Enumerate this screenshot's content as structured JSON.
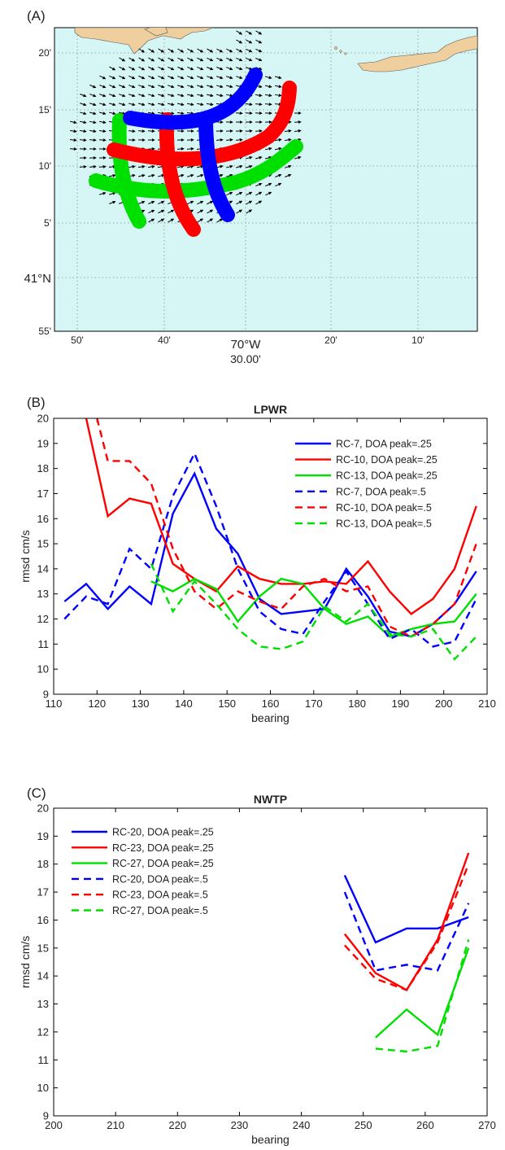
{
  "panel_a": {
    "label": "(A)",
    "lat_labels": [
      "20'",
      "15'",
      "10'",
      "5'",
      "41°N",
      "55'"
    ],
    "lon_labels": [
      "50'",
      "40'",
      "70°W",
      "20'",
      "10'"
    ],
    "lon_sublabel": "30.00'",
    "colors": {
      "ocean": "#d6f6f6",
      "land": "#f0cf9e",
      "blue": "#0000ff",
      "red": "#ff0000",
      "green": "#00e000"
    }
  },
  "chart_data": [
    {
      "type": "line",
      "panel": "(B)",
      "title": "LPWR",
      "xlabel": "bearing",
      "ylabel": "rmsd cm/s",
      "xlim": [
        110,
        210
      ],
      "ylim": [
        9,
        20
      ],
      "xticks": [
        110,
        120,
        130,
        140,
        150,
        160,
        170,
        180,
        190,
        200,
        210
      ],
      "yticks": [
        9,
        10,
        11,
        12,
        13,
        14,
        15,
        16,
        17,
        18,
        19,
        20
      ],
      "legend_position": "top-right",
      "series": [
        {
          "name": "RC-7,  DOA peak=.25",
          "color": "#0000ff",
          "dash": "solid",
          "x": [
            112.5,
            117.5,
            122.5,
            127.5,
            132.5,
            137.5,
            142.5,
            147.5,
            152.5,
            157.5,
            162.5,
            167.5,
            172.5,
            177.5,
            182.5,
            187.5,
            192.5,
            197.5,
            202.5,
            207.5
          ],
          "y": [
            12.7,
            13.4,
            12.4,
            13.3,
            12.6,
            16.2,
            17.8,
            15.6,
            14.6,
            12.8,
            12.2,
            12.3,
            12.4,
            14.0,
            12.9,
            11.5,
            11.3,
            11.8,
            12.6,
            13.9
          ]
        },
        {
          "name": "RC-10, DOA peak=.25",
          "color": "#ff0000",
          "dash": "solid",
          "x": [
            117.5,
            122.5,
            127.5,
            132.5,
            137.5,
            142.5,
            147.5,
            152.5,
            157.5,
            162.5,
            167.5,
            172.5,
            177.5,
            182.5,
            187.5,
            192.5,
            197.5,
            202.5,
            207.5
          ],
          "y": [
            20.0,
            16.1,
            16.8,
            16.6,
            14.2,
            13.6,
            13.1,
            14.1,
            13.6,
            13.4,
            13.4,
            13.5,
            13.4,
            14.3,
            13.1,
            12.2,
            12.8,
            14.0,
            16.5
          ]
        },
        {
          "name": "RC-13, DOA peak=.25",
          "color": "#00e000",
          "dash": "solid",
          "x": [
            132.5,
            137.5,
            142.5,
            147.5,
            152.5,
            157.5,
            162.5,
            167.5,
            172.5,
            177.5,
            182.5,
            187.5,
            192.5,
            197.5,
            202.5,
            207.5
          ],
          "y": [
            13.5,
            13.1,
            13.6,
            13.2,
            11.9,
            12.9,
            13.6,
            13.4,
            12.4,
            11.8,
            12.1,
            11.3,
            11.6,
            11.8,
            11.9,
            13.0
          ]
        },
        {
          "name": "RC-7,  DOA peak=.5",
          "color": "#0000ff",
          "dash": "dashed",
          "x": [
            112.5,
            117.5,
            122.5,
            127.5,
            132.5,
            137.5,
            142.5,
            147.5,
            152.5,
            157.5,
            162.5,
            167.5,
            172.5,
            177.5,
            182.5,
            187.5,
            192.5,
            197.5,
            202.5,
            207.5
          ],
          "y": [
            12.0,
            12.9,
            12.6,
            14.8,
            14.0,
            16.9,
            18.6,
            16.5,
            14.0,
            12.3,
            11.6,
            11.4,
            12.7,
            13.9,
            12.6,
            11.2,
            11.6,
            10.9,
            11.1,
            12.8
          ]
        },
        {
          "name": "RC-10, DOA peak=.5",
          "color": "#ff0000",
          "dash": "dashed",
          "x": [
            120,
            122.5,
            127.5,
            132.5,
            137.5,
            142.5,
            147.5,
            152.5,
            157.5,
            162.5,
            167.5,
            172.5,
            177.5,
            182.5,
            187.5,
            192.5,
            197.5,
            202.5,
            207.5
          ],
          "y": [
            20.0,
            18.3,
            18.3,
            17.4,
            14.8,
            13.1,
            12.4,
            13.1,
            12.7,
            12.4,
            13.3,
            13.6,
            13.1,
            13.3,
            11.7,
            11.3,
            11.8,
            12.6,
            15.0
          ]
        },
        {
          "name": "RC-13, DOA peak=.5",
          "color": "#00e000",
          "dash": "dashed",
          "x": [
            132.5,
            137.5,
            142.5,
            147.5,
            152.5,
            157.5,
            162.5,
            167.5,
            172.5,
            177.5,
            182.5,
            187.5,
            192.5,
            197.5,
            202.5,
            207.5
          ],
          "y": [
            14.2,
            12.3,
            13.5,
            12.6,
            11.6,
            10.9,
            10.8,
            11.1,
            12.5,
            11.9,
            12.6,
            11.4,
            11.3,
            11.6,
            10.4,
            11.3
          ]
        }
      ]
    },
    {
      "type": "line",
      "panel": "(C)",
      "title": "NWTP",
      "xlabel": "bearing",
      "ylabel": "rmsd cm/s",
      "xlim": [
        200,
        270
      ],
      "ylim": [
        9,
        20
      ],
      "xticks": [
        200,
        210,
        220,
        230,
        240,
        250,
        260,
        270
      ],
      "yticks": [
        9,
        10,
        11,
        12,
        13,
        14,
        15,
        16,
        17,
        18,
        19,
        20
      ],
      "legend_position": "top-left",
      "series": [
        {
          "name": "RC-20, DOA peak=.25",
          "color": "#0000ff",
          "dash": "solid",
          "x": [
            247,
            252,
            257,
            262,
            267
          ],
          "y": [
            17.6,
            15.2,
            15.7,
            15.7,
            16.1
          ]
        },
        {
          "name": "RC-23, DOA peak=.25",
          "color": "#ff0000",
          "dash": "solid",
          "x": [
            247,
            252,
            257,
            262,
            267
          ],
          "y": [
            15.5,
            14.1,
            13.5,
            15.3,
            18.4
          ]
        },
        {
          "name": "RC-27, DOA peak=.25",
          "color": "#00e000",
          "dash": "solid",
          "x": [
            252,
            257,
            262,
            267
          ],
          "y": [
            11.8,
            12.8,
            11.9,
            15.0
          ]
        },
        {
          "name": "RC-20, DOA peak=.5",
          "color": "#0000ff",
          "dash": "dashed",
          "x": [
            247,
            252,
            257,
            262,
            267
          ],
          "y": [
            17.0,
            14.2,
            14.4,
            14.2,
            16.6
          ]
        },
        {
          "name": "RC-23, DOA peak=.5",
          "color": "#ff0000",
          "dash": "dashed",
          "x": [
            247,
            252,
            257,
            262,
            267
          ],
          "y": [
            15.1,
            13.9,
            13.5,
            15.2,
            18.0
          ]
        },
        {
          "name": "RC-27, DOA peak=.5",
          "color": "#00e000",
          "dash": "dashed",
          "x": [
            252,
            257,
            262,
            267
          ],
          "y": [
            11.4,
            11.3,
            11.5,
            15.3
          ]
        }
      ]
    }
  ]
}
